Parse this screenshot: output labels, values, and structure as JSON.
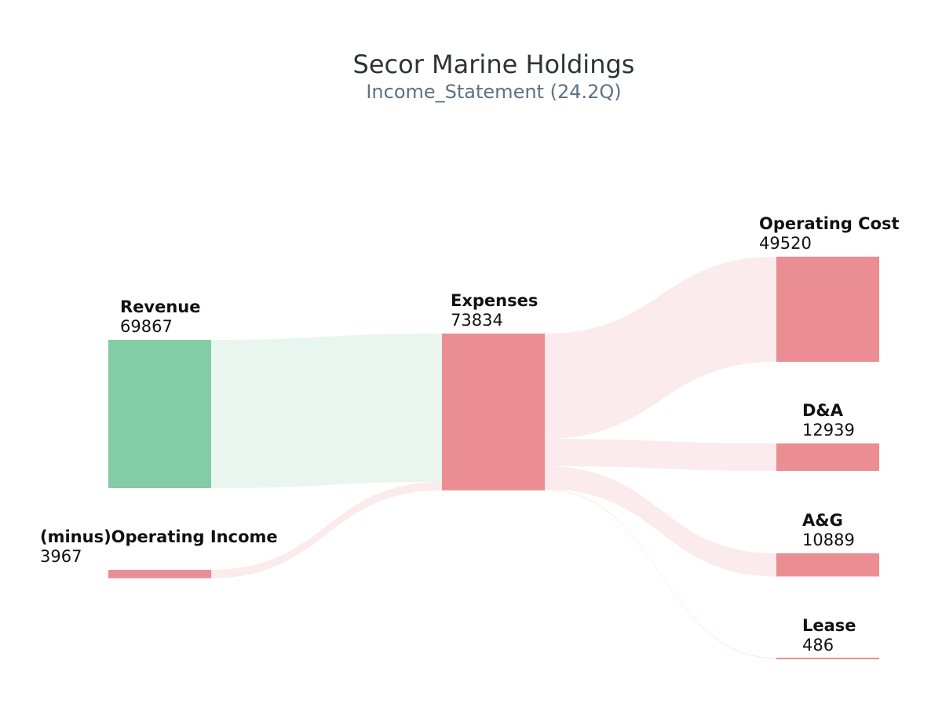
{
  "title": "Secor Marine Holdings",
  "subtitle": "Income_Statement (24.2Q)",
  "colors": {
    "revenue": "#84cca6",
    "expense": "#ea8e93",
    "revenue_link": "#e9f6ef",
    "expense_link": "#fcebec"
  },
  "chart_data": {
    "type": "sankey",
    "nodes": [
      {
        "id": "revenue",
        "name": "Revenue",
        "value": "69867",
        "kind": "revenue"
      },
      {
        "id": "op_income",
        "name": "(minus)Operating Income",
        "value": "3967",
        "kind": "expense"
      },
      {
        "id": "expenses",
        "name": "Expenses",
        "value": "73834",
        "kind": "expense"
      },
      {
        "id": "op_cost",
        "name": "Operating Cost",
        "value": "49520",
        "kind": "expense"
      },
      {
        "id": "da",
        "name": "D&A",
        "value": "12939",
        "kind": "expense"
      },
      {
        "id": "ag",
        "name": "A&G",
        "value": "10889",
        "kind": "expense"
      },
      {
        "id": "lease",
        "name": "Lease",
        "value": "486",
        "kind": "expense"
      }
    ],
    "links": [
      {
        "source": "revenue",
        "target": "expenses",
        "value": 69867
      },
      {
        "source": "op_income",
        "target": "expenses",
        "value": 3967
      },
      {
        "source": "expenses",
        "target": "op_cost",
        "value": 49520
      },
      {
        "source": "expenses",
        "target": "da",
        "value": 12939
      },
      {
        "source": "expenses",
        "target": "ag",
        "value": 10889
      },
      {
        "source": "expenses",
        "target": "lease",
        "value": 486
      }
    ]
  }
}
